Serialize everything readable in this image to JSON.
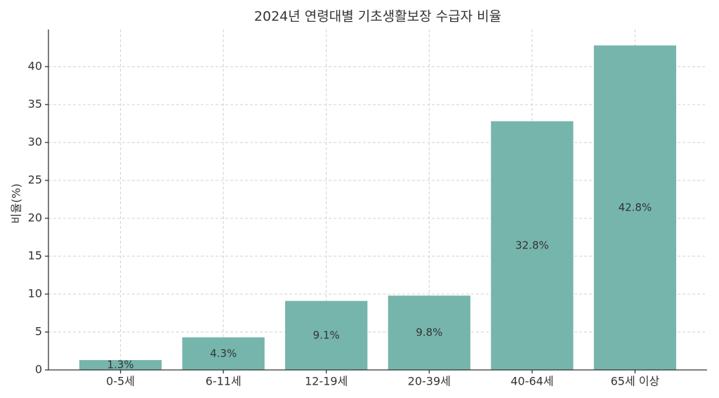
{
  "chart_data": {
    "type": "bar",
    "title": "2024년 연령대별 기초생활보장 수급자 비율",
    "y_label": "비율(%)",
    "categories": [
      "0-5세",
      "6-11세",
      "12-19세",
      "20-39세",
      "40-64세",
      "65세 이상"
    ],
    "values": [
      1.3,
      4.3,
      9.1,
      9.8,
      32.8,
      42.8
    ],
    "value_labels": [
      "1.3%",
      "4.3%",
      "9.1%",
      "9.8%",
      "32.8%",
      "42.8%"
    ],
    "color": "#76b5ac",
    "ylim": [
      0,
      44.9
    ],
    "yticks": [
      0,
      5,
      10,
      15,
      20,
      25,
      30,
      35,
      40
    ],
    "grid": true
  }
}
